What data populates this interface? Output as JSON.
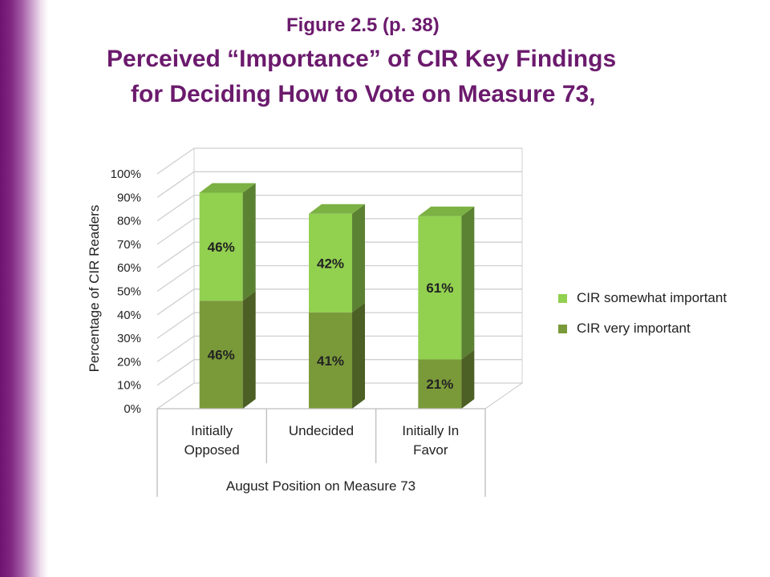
{
  "figure_label": "Figure 2.5 (p. 38)",
  "title_line1": "Perceived “Importance” of CIR Key Findings",
  "title_line2": "for Deciding How to Vote on Measure 73,",
  "chart_data": {
    "type": "bar",
    "stacked": true,
    "three_d": true,
    "categories": [
      [
        "Initially",
        "Opposed"
      ],
      [
        "Undecided"
      ],
      [
        "Initially In",
        "Favor"
      ]
    ],
    "series": [
      {
        "name": "CIR very important",
        "values": [
          46,
          41,
          21
        ],
        "labels": [
          "46%",
          "41%",
          "21%"
        ],
        "color": "#7a9a3a"
      },
      {
        "name": "CIR somewhat important",
        "values": [
          46,
          42,
          61
        ],
        "labels": [
          "46%",
          "42%",
          "61%"
        ],
        "color": "#92d050"
      }
    ],
    "ylabel": "Percentage of CIR Readers",
    "xlabel": "August Position on Measure 73",
    "ylim": [
      0,
      100
    ],
    "yticks": [
      "0%",
      "10%",
      "20%",
      "30%",
      "40%",
      "50%",
      "60%",
      "70%",
      "80%",
      "90%",
      "100%"
    ],
    "grid": true,
    "legend_position": "right",
    "legend_order": [
      "CIR somewhat important",
      "CIR very important"
    ]
  }
}
